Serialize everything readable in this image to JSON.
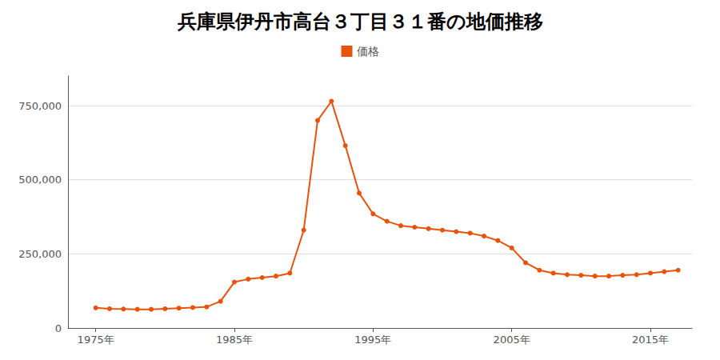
{
  "chart_data": {
    "type": "line",
    "title": "兵庫県伊丹市高台３丁目３１番の地価推移",
    "x": [
      1975,
      1976,
      1977,
      1978,
      1979,
      1980,
      1981,
      1982,
      1983,
      1984,
      1985,
      1986,
      1987,
      1988,
      1989,
      1990,
      1991,
      1992,
      1993,
      1994,
      1995,
      1996,
      1997,
      1998,
      1999,
      2000,
      2001,
      2002,
      2003,
      2004,
      2005,
      2006,
      2007,
      2008,
      2009,
      2010,
      2011,
      2012,
      2013,
      2014,
      2015,
      2016,
      2017
    ],
    "series": [
      {
        "name": "価格",
        "color": "#e8520a",
        "marker": "circle",
        "values": [
          68000,
          65000,
          64000,
          63000,
          63000,
          65000,
          67000,
          69000,
          71000,
          90000,
          155000,
          165000,
          170000,
          175000,
          185000,
          330000,
          700000,
          765000,
          615000,
          455000,
          385000,
          360000,
          345000,
          340000,
          335000,
          330000,
          325000,
          320000,
          310000,
          295000,
          270000,
          220000,
          195000,
          185000,
          180000,
          178000,
          175000,
          175000,
          178000,
          180000,
          185000,
          190000,
          195000
        ]
      }
    ],
    "xlim": [
      1973,
      2018
    ],
    "xticks": [
      {
        "value": 1975,
        "label": "1975年"
      },
      {
        "value": 1985,
        "label": "1985年"
      },
      {
        "value": 1995,
        "label": "1995年"
      },
      {
        "value": 2005,
        "label": "2005年"
      },
      {
        "value": 2015,
        "label": "2015年"
      }
    ],
    "ylim": [
      0,
      850000
    ],
    "yticks": [
      0,
      {
        "value": 250000,
        "label": "250,000"
      },
      {
        "value": 500000,
        "label": "500,000"
      },
      {
        "value": 750000,
        "label": "750,000"
      }
    ],
    "grid": true,
    "legend": "top"
  }
}
